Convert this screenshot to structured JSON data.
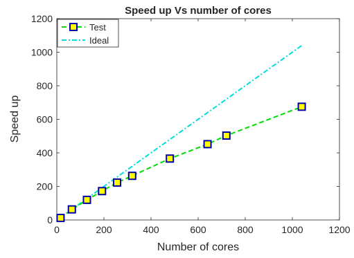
{
  "chart_data": {
    "type": "line",
    "title": "Speed up Vs number of cores",
    "xlabel": "Number of cores",
    "ylabel": "Speed up",
    "xlim": [
      0,
      1200
    ],
    "ylim": [
      0,
      1200
    ],
    "xticks": [
      0,
      200,
      400,
      600,
      800,
      1000,
      1200
    ],
    "yticks": [
      0,
      200,
      400,
      600,
      800,
      1000,
      1200
    ],
    "grid": false,
    "legend_position": "top-left",
    "series": [
      {
        "name": "Test",
        "style": "dashed",
        "marker": "square",
        "color": "#00dd00",
        "marker_edge_color": "#0000aa",
        "marker_face_color": "#ffff00",
        "x": [
          16,
          64,
          128,
          192,
          256,
          320,
          480,
          640,
          720,
          1040
        ],
        "y": [
          12,
          63,
          120,
          172,
          223,
          263,
          366,
          452,
          503,
          675
        ]
      },
      {
        "name": "Ideal",
        "style": "dashdot",
        "marker": "none",
        "color": "#00dddd",
        "x": [
          16,
          1040
        ],
        "y": [
          16,
          1040
        ]
      }
    ]
  }
}
